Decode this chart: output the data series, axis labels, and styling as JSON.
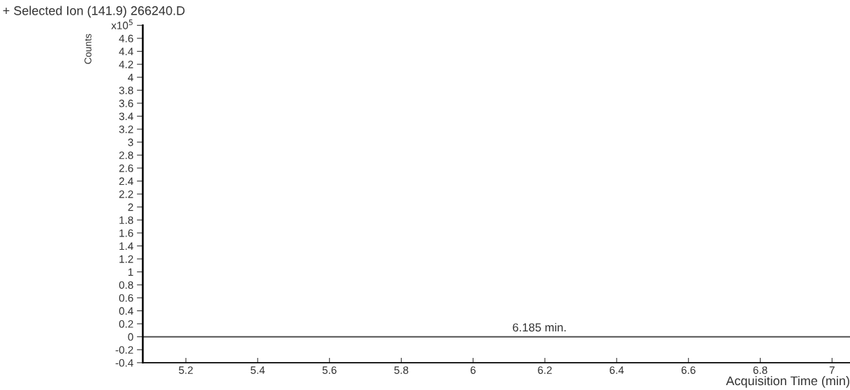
{
  "chart_data": {
    "type": "line",
    "title": "+ Selected Ion (141.9) 266240.D",
    "xlabel": "Acquisition Time (min)",
    "ylabel": "Counts",
    "x": [
      5.08,
      7.05
    ],
    "series": [
      {
        "color": "#505050",
        "values": [
          0,
          0
        ]
      }
    ],
    "xlim": [
      5.08,
      7.05
    ],
    "xticks": [
      5.2,
      5.4,
      5.6,
      5.8,
      6,
      6.2,
      6.4,
      6.6,
      6.8,
      7
    ],
    "ylim": [
      -0.4,
      4.8
    ],
    "yticks": [
      -0.4,
      -0.2,
      0,
      0.2,
      0.4,
      0.6,
      0.8,
      1,
      1.2,
      1.4,
      1.6,
      1.8,
      2,
      2.2,
      2.4,
      2.6,
      2.8,
      3,
      3.2,
      3.4,
      3.6,
      3.8,
      4,
      4.2,
      4.4,
      4.6,
      {
        "value": 4.8,
        "label": "x10$^{5}$"
      }
    ],
    "annotations": [
      {
        "text": "6.185 min.",
        "x": 6.185,
        "y": 0
      }
    ],
    "grid": false,
    "legend": false
  }
}
